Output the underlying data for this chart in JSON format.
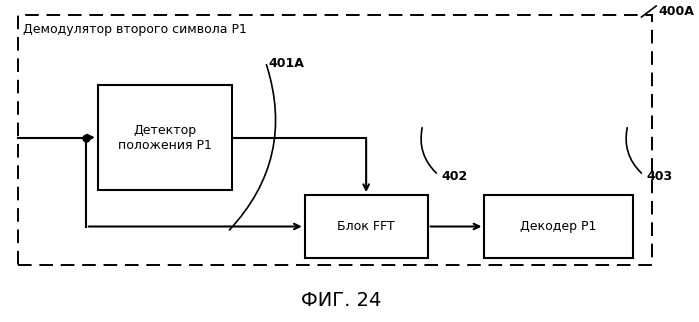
{
  "fig_width": 6.99,
  "fig_height": 3.22,
  "dpi": 100,
  "bg_color": "#ffffff",
  "outer_label": "400A",
  "outer_box_label": "Демодулятор второго символа P1",
  "block_401A_label": "Детектор\nположения P1",
  "block_401A_id": "401A",
  "block_402_label": "Блок FFT",
  "block_402_id": "402",
  "block_403_label": "Декодер P1",
  "block_403_id": "403",
  "caption": "ФИГ. 24",
  "line_color": "#000000",
  "text_color": "#000000",
  "box_fill": "#ffffff",
  "font_size_label": 9,
  "font_size_id": 9,
  "font_size_caption": 14,
  "font_size_outer_label": 9,
  "font_size_box_title": 9
}
